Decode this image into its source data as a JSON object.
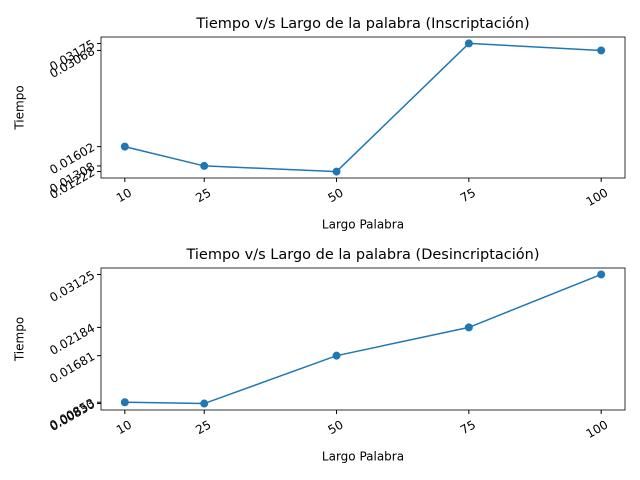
{
  "chart_data": [
    {
      "type": "line",
      "title": "Tiempo v/s Largo de la palabra (Inscriptación)",
      "title_color": "#0000ff",
      "xlabel": "Largo Palabra",
      "xlabel_color": "#ff0000",
      "ylabel": "Tiempo",
      "ylabel_color": "#ffa500",
      "x": [
        10,
        25,
        50,
        75,
        100
      ],
      "values": [
        0.01602,
        0.01308,
        0.01222,
        0.03175,
        0.03068
      ],
      "color": "#1f77b4",
      "xlim": [
        5.5,
        104.5
      ],
      "ylim": [
        0.01124,
        0.03273
      ],
      "xticks": [
        10,
        25,
        50,
        75,
        100
      ],
      "yticks": [
        0.01222,
        0.01308,
        0.01602,
        0.03068,
        0.03175
      ]
    },
    {
      "type": "line",
      "title": "Tiempo v/s Largo de la palabra (Desincriptación)",
      "title_color": "#0000ff",
      "xlabel": "Largo Palabra",
      "xlabel_color": "#ff0000",
      "ylabel": "Tiempo",
      "ylabel_color": "#ffa500",
      "x": [
        10,
        25,
        50,
        75,
        100
      ],
      "values": [
        0.00853,
        0.0083,
        0.01681,
        0.02184,
        0.03125
      ],
      "color": "#1f77b4",
      "xlim": [
        5.5,
        104.5
      ],
      "ylim": [
        0.00715,
        0.0324
      ],
      "xticks": [
        10,
        25,
        50,
        75,
        100
      ],
      "yticks": [
        {
          "value": 0.0083,
          "label": "0.00830"
        },
        0.00853,
        0.01681,
        0.02184,
        0.03125
      ]
    }
  ]
}
